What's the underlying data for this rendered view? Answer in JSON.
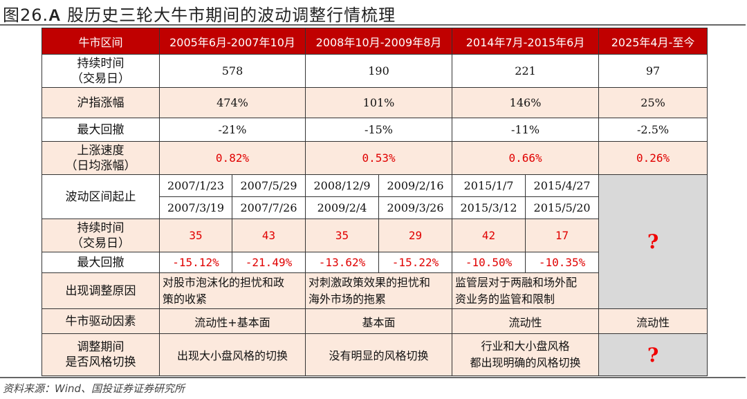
{
  "title": {
    "prefix": "图26.",
    "bold": "A",
    "rest": " 股历史三轮大牛市期间的波动调整行情梳理"
  },
  "header": [
    "牛市区间",
    "2005年6月-2007年10月",
    "2008年10月-2009年8月",
    "2014年7月-2015年6月",
    "2025年4月-至今"
  ],
  "rows": {
    "duration": {
      "label1": "持续时间",
      "label2": "（交易日）",
      "values": [
        "578",
        "190",
        "221",
        "97"
      ]
    },
    "gain": {
      "label": "沪指涨幅",
      "values": [
        "474%",
        "101%",
        "146%",
        "25%"
      ]
    },
    "drawdown": {
      "label": "最大回撤",
      "values": [
        "-21%",
        "-15%",
        "-11%",
        "-2.5%"
      ]
    },
    "speed": {
      "label1": "上涨速度",
      "label2": "（日均涨幅）",
      "values": [
        "0.82%",
        "0.53%",
        "0.66%",
        "0.26%"
      ]
    },
    "range": {
      "label": "波动区间起止",
      "starts": [
        "2007/1/23",
        "2007/5/29",
        "2008/12/9",
        "2009/2/16",
        "2015/1/7",
        "2015/4/27"
      ],
      "ends": [
        "2007/3/19",
        "2007/7/26",
        "2009/2/4",
        "2009/3/26",
        "2015/3/12",
        "2015/5/20"
      ]
    },
    "sub_duration": {
      "label1": "持续时间",
      "label2": "（交易日）",
      "values": [
        "35",
        "43",
        "35",
        "29",
        "42",
        "17"
      ]
    },
    "sub_drawdown": {
      "label": "最大回撤",
      "values": [
        "-15.12%",
        "-21.49%",
        "-13.62%",
        "-15.22%",
        "-10.50%",
        "-10.35%"
      ]
    },
    "reason": {
      "label": "出现调整原因",
      "values": [
        [
          "对股市泡沫化的担忧和政",
          "策的收紧"
        ],
        [
          "对刺激政策效果的担忧和",
          "海外市场的拖累"
        ],
        [
          "监管层对于两融和场外配",
          "资业务的监管和限制"
        ]
      ]
    },
    "driver": {
      "label": "牛市驱动因素",
      "values": [
        "流动性+基本面",
        "基本面",
        "流动性",
        "流动性"
      ]
    },
    "style": {
      "label1": "调整期间",
      "label2": "是否风格切换",
      "values": [
        [
          "出现大小盘风格的切换"
        ],
        [
          "没有明显的风格切换"
        ],
        [
          "行业和大小盘风格",
          "都出现明确的风格切换"
        ]
      ]
    }
  },
  "unknown": "?",
  "source": "资料来源：Wind、国投证券证券研究所"
}
